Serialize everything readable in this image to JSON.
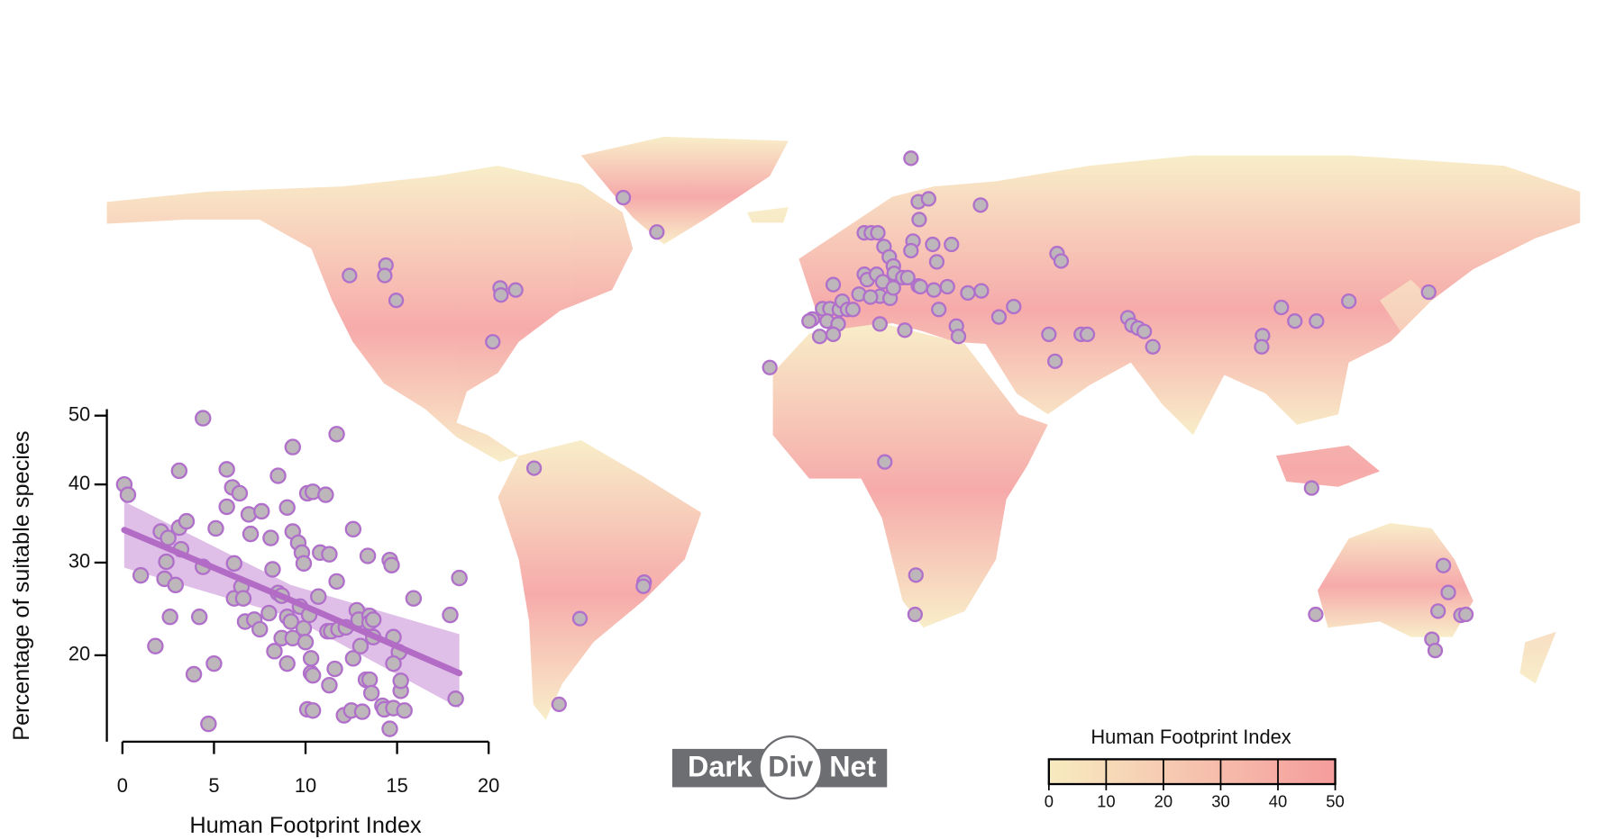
{
  "chart_data": [
    {
      "type": "scatter",
      "x_label": "Human Footprint Index",
      "y_label": "Percentage of suitable species",
      "x": [
        0.1,
        0.3,
        1.0,
        1.8,
        2.1,
        2.4,
        2.5,
        2.3,
        2.6,
        2.9,
        3.1,
        3.1,
        3.2,
        3.5,
        3.9,
        4.2,
        4.4,
        4.4,
        4.7,
        5.0,
        5.1,
        5.7,
        5.7,
        6.0,
        6.1,
        6.1,
        6.4,
        6.5,
        6.6,
        6.7,
        6.9,
        7.0,
        7.2,
        7.6,
        7.5,
        8.0,
        8.1,
        8.2,
        8.3,
        8.5,
        8.5,
        8.7,
        8.7,
        9.0,
        9.0,
        9.0,
        9.2,
        9.3,
        9.3,
        9.3,
        9.6,
        9.7,
        9.8,
        9.9,
        9.9,
        10.0,
        10.1,
        10.1,
        10.2,
        10.3,
        10.3,
        10.4,
        10.4,
        10.4,
        10.7,
        10.8,
        11.1,
        11.2,
        11.3,
        11.3,
        11.4,
        11.6,
        11.7,
        11.7,
        11.8,
        12.1,
        12.2,
        12.5,
        12.6,
        12.6,
        12.8,
        12.9,
        13.0,
        13.1,
        13.3,
        13.4,
        13.5,
        13.5,
        13.5,
        13.7,
        13.6,
        13.7,
        14.2,
        14.3,
        14.6,
        14.7,
        14.6,
        14.8,
        14.8,
        15.1,
        15.2,
        15.4,
        15.9,
        17.9,
        18.2,
        18.4,
        14.8,
        15.2
      ],
      "y": [
        40.0,
        38.6,
        28.5,
        20.9,
        33.8,
        30.1,
        33.0,
        28.1,
        23.9,
        27.4,
        41.9,
        34.3,
        31.6,
        35.1,
        18.2,
        23.9,
        49.6,
        29.5,
        13.9,
        19.2,
        34.2,
        37.0,
        42.1,
        39.6,
        29.9,
        25.9,
        38.8,
        27.2,
        25.9,
        23.4,
        36.0,
        33.5,
        23.6,
        36.4,
        22.6,
        24.3,
        33.0,
        29.2,
        20.4,
        41.2,
        26.5,
        26.2,
        21.7,
        23.9,
        36.9,
        19.2,
        23.4,
        45.3,
        21.7,
        33.8,
        32.4,
        25.0,
        31.2,
        29.9,
        22.7,
        21.3,
        38.8,
        15.1,
        24.1,
        19.7,
        18.3,
        39.0,
        15.0,
        18.1,
        26.1,
        31.2,
        38.6,
        22.4,
        31.0,
        17.2,
        22.4,
        18.7,
        27.8,
        47.2,
        22.6,
        14.6,
        22.8,
        15.0,
        34.1,
        19.7,
        24.6,
        23.6,
        20.9,
        14.9,
        17.7,
        30.8,
        24.0,
        17.7,
        23.3,
        23.6,
        16.5,
        21.8,
        15.4,
        15.1,
        30.3,
        29.7,
        13.5,
        21.8,
        15.2,
        20.3,
        16.7,
        15.0,
        25.9,
        24.1,
        16.0,
        28.2,
        19.2,
        17.6
      ],
      "xlim": [
        -0.85,
        20
      ],
      "ylim": [
        12.5,
        51
      ],
      "xticks": [
        0,
        5,
        10,
        15,
        20
      ],
      "yticks": [
        20,
        30,
        40,
        50
      ],
      "yscale": "sqrt",
      "marker_color": "#bdb6bb",
      "marker_edge": "#b06fca",
      "fit": {
        "x": [
          0.1,
          9.2,
          18.4
        ],
        "y": [
          34.0,
          25.7,
          18.3
        ],
        "upper": [
          37.7,
          27.4,
          22.1
        ],
        "lower": [
          29.4,
          23.9,
          15.2
        ],
        "color": "#b36cc6",
        "band_color": "#d9b3e3"
      }
    },
    {
      "type": "map",
      "x": [
        16.5,
        -53.8,
        -45.6,
        18.3,
        20.8,
        33.5,
        5.1,
        6.8,
        8.4,
        18.5,
        17,
        16.5,
        9.9,
        11.2,
        21.8,
        26.4,
        22.8,
        52.2,
        53.2,
        -120.7,
        -111.8,
        -112.1,
        -109.3,
        -83.9,
        -83.7,
        -80.1,
        -85.7,
        -2.5,
        5.1,
        5.8,
        8.1,
        12.2,
        12.4,
        14.5,
        15.7,
        18.3,
        9.6,
        8.9,
        11.4,
        12.2,
        18.8,
        22.1,
        25.4,
        30.4,
        33.7,
        23.3,
        -5.1,
        -3.3,
        -1,
        -0.3,
        1,
        2.3,
        -7.6,
        -8.4,
        -4,
        -1.3,
        -5.8,
        -2.5,
        8.9,
        15,
        27.6,
        28.1,
        38,
        41.6,
        50.2,
        51.7,
        58.1,
        59.6,
        69.5,
        70.5,
        72,
        73.5,
        75.6,
        -18,
        107,
        102.4,
        102.2,
        110.3,
        115.6,
        123.5,
        143,
        10.1,
        -75.6,
        114.4,
        17.7,
        17.5,
        -48.7,
        -48.9,
        -64.4,
        -69.5,
        115.4,
        146.6,
        147.8,
        145.3,
        150.9,
        152.1,
        143.8,
        144.6,
        3.8,
        6.6
      ],
      "y": [
        71.8,
        62.3,
        54,
        61.3,
        62,
        60.5,
        53.8,
        53.8,
        53.8,
        57,
        51.8,
        49.5,
        50.5,
        48,
        51,
        51,
        46.8,
        48.8,
        47,
        43.5,
        46,
        43.5,
        37.5,
        40.5,
        38.8,
        40,
        27.5,
        41.3,
        43.8,
        42.5,
        43.8,
        45.8,
        44,
        43,
        43,
        41,
        42,
        38.5,
        38,
        40.5,
        40.8,
        40,
        40.8,
        39.3,
        39.8,
        35.3,
        35.5,
        35.5,
        35.3,
        37.3,
        35.3,
        35.3,
        33,
        32.5,
        32.5,
        31.8,
        28.8,
        29.3,
        31.8,
        30.3,
        31.3,
        28.8,
        33.5,
        36,
        29.3,
        22.8,
        29.3,
        29.3,
        33.3,
        31.5,
        30.8,
        30,
        26.3,
        21.3,
        35.8,
        29,
        26.3,
        32.5,
        32.5,
        37.3,
        39.5,
        -1.5,
        -3,
        -7.8,
        -28.8,
        -38.3,
        -30.5,
        -31.5,
        -39.3,
        -60,
        -38.3,
        -26.5,
        -33,
        -37.5,
        -38.5,
        -38.3,
        -44.3,
        -47,
        39,
        38.3
      ],
      "xlim": [
        -180,
        180
      ],
      "ylim": [
        -65,
        77.5
      ],
      "marker_color": "#bdb6bb",
      "marker_edge": "#b06fca",
      "colorbar": {
        "title": "Human Footprint Index",
        "range": [
          0,
          50
        ],
        "ticks": [
          0,
          10,
          20,
          30,
          40,
          50
        ],
        "colors": [
          "#f7ebc0",
          "#f59c9c"
        ]
      }
    }
  ],
  "logo": {
    "left": "Dark",
    "middle": "Div",
    "right": "Net"
  }
}
